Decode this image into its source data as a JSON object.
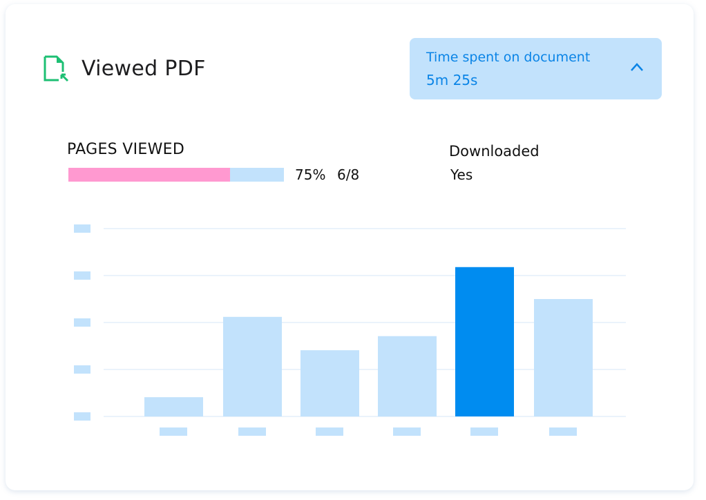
{
  "header": {
    "title": "Viewed PDF",
    "icon": "file-arrow-icon",
    "icon_color": "#1dbf73"
  },
  "time_spent": {
    "label": "Time spent on document",
    "value": "5m 25s",
    "icon": "chevron-up-icon",
    "expanded": true
  },
  "pages_viewed": {
    "label": "PAGES VIEWED",
    "percent_text": "75%",
    "count_text": "6/8",
    "progress": 0.75,
    "fill_color": "#ff99d0",
    "track_color": "#c2e2fc"
  },
  "downloaded": {
    "label": "Downloaded",
    "value": "Yes"
  },
  "chart_data": {
    "type": "bar",
    "title": "",
    "xlabel": "",
    "ylabel": "",
    "categories": [
      "",
      "",
      "",
      "",
      "",
      ""
    ],
    "values": [
      0.41,
      2.12,
      1.41,
      1.71,
      3.18,
      2.5
    ],
    "highlight_index": 4,
    "ylim": [
      0,
      4
    ],
    "grid": true,
    "tick_labels": "placeholder",
    "colors": {
      "bar": "#c2e2fc",
      "highlight": "#008cf0",
      "grid": "#eaf3fb",
      "placeholder": "#c2e2fc"
    }
  }
}
